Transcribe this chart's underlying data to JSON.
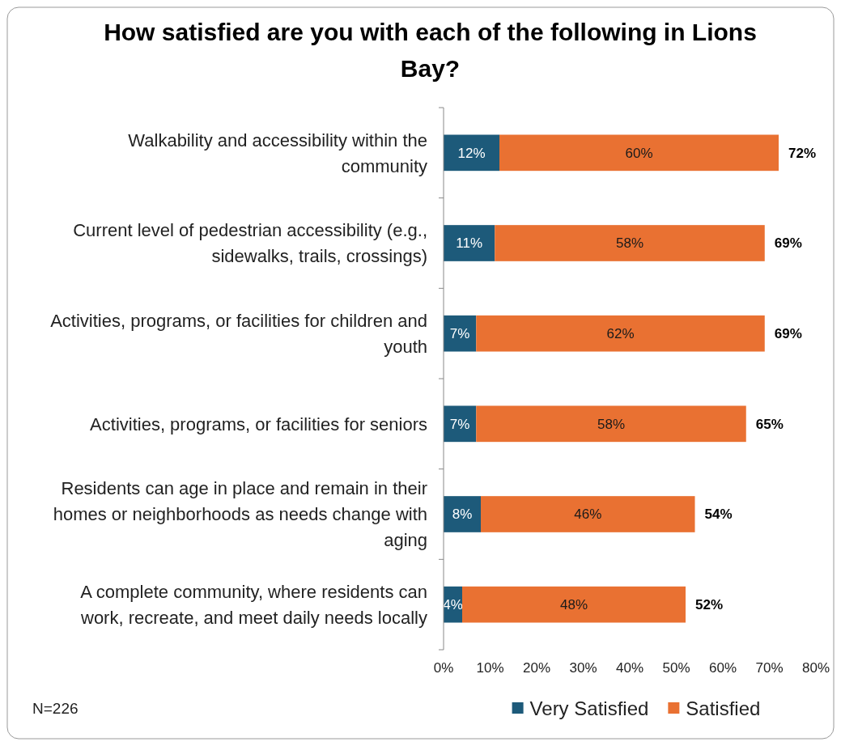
{
  "chart_data": {
    "type": "bar",
    "orientation": "horizontal",
    "stacked": true,
    "title": "How satisfied are you with each of the following in Lions Bay?",
    "categories": [
      "Walkability and accessibility within the community",
      "Current level of pedestrian accessibility (e.g., sidewalks, trails, crossings)",
      "Activities, programs, or facilities for children and youth",
      "Activities, programs, or facilities for seniors",
      "Residents can age in place and remain in their homes or neighborhoods as needs change with aging",
      "A complete community, where residents can work, recreate, and meet daily needs locally"
    ],
    "series": [
      {
        "name": "Very Satisfied",
        "color": "#1d5a7a",
        "values": [
          12,
          11,
          7,
          7,
          8,
          4
        ],
        "value_labels": [
          "12%",
          "11%",
          "7%",
          "7%",
          "8%",
          "4%"
        ]
      },
      {
        "name": "Satisfied",
        "color": "#e97132",
        "values": [
          60,
          58,
          62,
          58,
          46,
          48
        ],
        "value_labels": [
          "60%",
          "58%",
          "62%",
          "58%",
          "46%",
          "48%"
        ]
      }
    ],
    "xlim": [
      0,
      80
    ],
    "xticks": [
      {
        "value": 0,
        "label": "0%"
      },
      {
        "value": 10,
        "label": "10%"
      },
      {
        "value": 20,
        "label": "20%"
      },
      {
        "value": 30,
        "label": "30%"
      },
      {
        "value": 40,
        "label": "40%"
      },
      {
        "value": 50,
        "label": "50%"
      },
      {
        "value": 60,
        "label": "60%"
      },
      {
        "value": 70,
        "label": "70%"
      },
      {
        "value": 80,
        "label": "80%"
      }
    ],
    "totals": [
      "72%",
      "69%",
      "69%",
      "65%",
      "54%",
      "52%"
    ],
    "legend": "bottom",
    "grid": false,
    "annotations": [
      "N=226"
    ]
  }
}
